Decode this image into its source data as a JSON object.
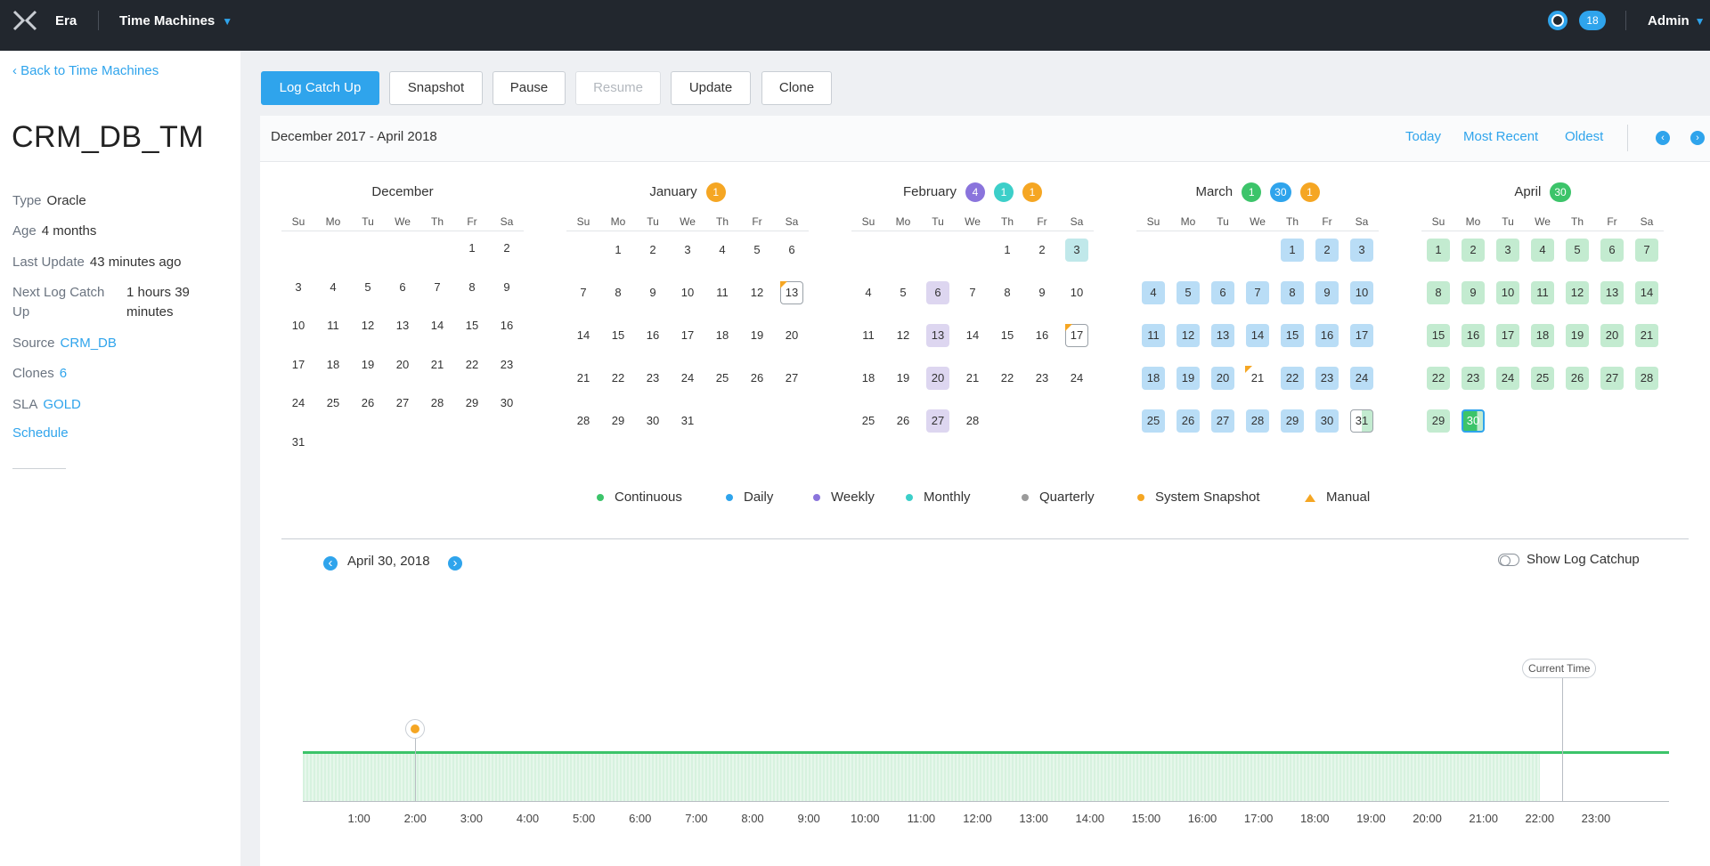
{
  "topbar": {
    "app_name": "Era",
    "section": "Time Machines",
    "notifications": "18",
    "user": "Admin"
  },
  "sidebar": {
    "back_link": "Back to Time Machines",
    "title": "CRM_DB_TM",
    "fields": {
      "type_label": "Type",
      "type_value": "Oracle",
      "age_label": "Age",
      "age_value": "4 months",
      "last_update_label": "Last Update",
      "last_update_value": "43 minutes ago",
      "next_log_label_1": "Next Log Catch",
      "next_log_label_2": "Up",
      "next_log_value_1": "1 hours 39",
      "next_log_value_2": "minutes",
      "source_label": "Source",
      "source_value": "CRM_DB",
      "clones_label": "Clones",
      "clones_value": "6",
      "sla_label": "SLA",
      "sla_value": "GOLD"
    },
    "schedule_link": "Schedule"
  },
  "toolbar": {
    "log_catch_up": "Log Catch Up",
    "snapshot": "Snapshot",
    "pause": "Pause",
    "resume": "Resume",
    "update": "Update",
    "clone": "Clone"
  },
  "calendar_header": {
    "range": "December 2017 - April 2018",
    "today": "Today",
    "most_recent": "Most Recent",
    "oldest": "Oldest"
  },
  "colors": {
    "accent": "#2fa4ec",
    "continuous": "#3cc46a",
    "daily": "#2fa4ec",
    "weekly": "#8a74dc",
    "monthly": "#3ccfc9",
    "quarterly": "#9b9b9b",
    "system_snapshot": "#f5a623",
    "manual": "#f5a623"
  },
  "day_headers": [
    "Su",
    "Mo",
    "Tu",
    "We",
    "Th",
    "Fr",
    "Sa"
  ],
  "months": [
    {
      "name": "December",
      "badges": [],
      "start_dow": 5,
      "days": 31,
      "marks": {}
    },
    {
      "name": "January",
      "badges": [
        {
          "text": "1",
          "color": "#f5a623"
        }
      ],
      "start_dow": 1,
      "days": 31,
      "marks": {
        "13": "outline-manual"
      }
    },
    {
      "name": "February",
      "badges": [
        {
          "text": "4",
          "color": "#8a74dc"
        },
        {
          "text": "1",
          "color": "#3ccfc9"
        },
        {
          "text": "1",
          "color": "#f5a623"
        }
      ],
      "start_dow": 4,
      "days": 28,
      "marks": {
        "3": "cyan",
        "6": "purple",
        "13": "purple",
        "17": "outline-manual",
        "20": "purple",
        "27": "purple"
      }
    },
    {
      "name": "March",
      "badges": [
        {
          "text": "1",
          "color": "#3cc46a"
        },
        {
          "text": "30",
          "color": "#2fa4ec"
        },
        {
          "text": "1",
          "color": "#f5a623"
        }
      ],
      "start_dow": 4,
      "days": 31,
      "marks": {
        "1": "blue",
        "2": "blue",
        "3": "blue",
        "4": "blue",
        "5": "blue",
        "6": "blue",
        "7": "blue",
        "8": "blue",
        "9": "blue",
        "10": "blue",
        "11": "blue",
        "12": "blue",
        "13": "blue",
        "14": "blue",
        "15": "blue",
        "16": "blue",
        "17": "blue",
        "18": "blue",
        "19": "blue",
        "20": "blue",
        "21": "blue-manual",
        "22": "blue",
        "23": "blue",
        "24": "blue",
        "25": "blue",
        "26": "blue",
        "27": "blue",
        "28": "blue",
        "29": "blue",
        "30": "blue",
        "31": "halfg"
      }
    },
    {
      "name": "April",
      "badges": [
        {
          "text": "30",
          "color": "#3cc46a"
        }
      ],
      "start_dow": 0,
      "days": 30,
      "marks": {
        "1": "green",
        "2": "green",
        "3": "green",
        "4": "green",
        "5": "green",
        "6": "green",
        "7": "green",
        "8": "green",
        "9": "green",
        "10": "green",
        "11": "green",
        "12": "green",
        "13": "green",
        "14": "green",
        "15": "green",
        "16": "green",
        "17": "green",
        "18": "green",
        "19": "green",
        "20": "green",
        "21": "green",
        "22": "green",
        "23": "green",
        "24": "green",
        "25": "green",
        "26": "green",
        "27": "green",
        "28": "green",
        "29": "green",
        "30": "sel"
      }
    }
  ],
  "legend": [
    {
      "label": "Continuous",
      "shape": "dot",
      "color": "#3cc46a"
    },
    {
      "label": "Daily",
      "shape": "dot",
      "color": "#2fa4ec"
    },
    {
      "label": "Weekly",
      "shape": "dot",
      "color": "#8a74dc"
    },
    {
      "label": "Monthly",
      "shape": "dot",
      "color": "#3ccfc9"
    },
    {
      "label": "Quarterly",
      "shape": "dot",
      "color": "#9b9b9b"
    },
    {
      "label": "System Snapshot",
      "shape": "dot",
      "color": "#f5a623"
    },
    {
      "label": "Manual",
      "shape": "triangle",
      "color": "#f5a623"
    }
  ],
  "timeline": {
    "date": "April 30, 2018",
    "show_log_catchup": "Show Log Catchup",
    "show_log_catchup_on": false,
    "current_time_label": "Current Time",
    "ticks": [
      "1:00",
      "2:00",
      "3:00",
      "4:00",
      "5:00",
      "6:00",
      "7:00",
      "8:00",
      "9:00",
      "10:00",
      "11:00",
      "12:00",
      "13:00",
      "14:00",
      "15:00",
      "16:00",
      "17:00",
      "18:00",
      "19:00",
      "20:00",
      "21:00",
      "22:00",
      "23:00"
    ],
    "continuous_range_hours": [
      0,
      22.0
    ],
    "snapshot_hour": 2.0,
    "current_time_hour": 22.4
  }
}
